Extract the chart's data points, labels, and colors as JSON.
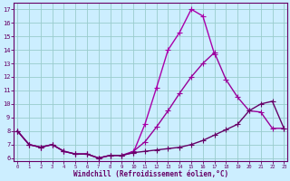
{
  "xlabel": "Windchill (Refroidissement éolien,°C)",
  "x": [
    0,
    1,
    2,
    3,
    4,
    5,
    6,
    7,
    8,
    9,
    10,
    11,
    12,
    13,
    14,
    15,
    16,
    17,
    18,
    19,
    20,
    21,
    22,
    23
  ],
  "line1": [
    8.0,
    7.0,
    6.8,
    7.0,
    6.5,
    6.3,
    6.3,
    6.0,
    6.2,
    6.2,
    6.4,
    8.5,
    11.2,
    14.0,
    15.3,
    17.0,
    16.5,
    13.7,
    null,
    null,
    null,
    null,
    null,
    null
  ],
  "line2": [
    8.0,
    7.0,
    6.8,
    7.0,
    6.5,
    6.3,
    6.3,
    6.0,
    6.2,
    6.2,
    6.5,
    7.2,
    8.3,
    9.5,
    10.8,
    12.0,
    13.0,
    13.8,
    null,
    null,
    null,
    null,
    null,
    null
  ],
  "line3": [
    8.0,
    7.0,
    6.8,
    7.0,
    6.5,
    6.3,
    6.3,
    6.0,
    6.2,
    6.2,
    6.4,
    6.5,
    6.6,
    6.7,
    6.8,
    7.0,
    7.3,
    7.7,
    8.1,
    8.5,
    9.5,
    10.0,
    10.2,
    8.2
  ],
  "line1_x": [
    0,
    1,
    2,
    3,
    4,
    5,
    6,
    7,
    8,
    9,
    10,
    11,
    12,
    13,
    14,
    15,
    16,
    17
  ],
  "line1_y": [
    8.0,
    7.0,
    6.8,
    7.0,
    6.5,
    6.3,
    6.3,
    6.0,
    6.2,
    6.2,
    6.4,
    8.5,
    11.2,
    14.0,
    15.3,
    17.0,
    16.5,
    13.7
  ],
  "line2_x": [
    0,
    1,
    2,
    3,
    4,
    5,
    6,
    7,
    8,
    9,
    10,
    11,
    12,
    13,
    14,
    15,
    16,
    17,
    18,
    19,
    20,
    21,
    22,
    23
  ],
  "line2_y": [
    8.0,
    7.0,
    6.8,
    7.0,
    6.5,
    6.3,
    6.3,
    6.0,
    6.2,
    6.2,
    6.5,
    7.2,
    8.3,
    9.5,
    10.8,
    12.0,
    13.0,
    13.8,
    11.8,
    10.5,
    9.5,
    9.4,
    8.2,
    8.2
  ],
  "line3_x": [
    0,
    1,
    2,
    3,
    4,
    5,
    6,
    7,
    8,
    9,
    10,
    11,
    12,
    13,
    14,
    15,
    16,
    17,
    18,
    19,
    20,
    21,
    22,
    23
  ],
  "line3_y": [
    8.0,
    7.0,
    6.8,
    7.0,
    6.5,
    6.3,
    6.3,
    6.0,
    6.2,
    6.2,
    6.4,
    6.5,
    6.6,
    6.7,
    6.8,
    7.0,
    7.3,
    7.7,
    8.1,
    8.5,
    9.5,
    10.0,
    10.2,
    8.2
  ],
  "line_color1": "#aa00aa",
  "line_color2": "#990099",
  "line_color3": "#660066",
  "bg_color": "#cceeff",
  "grid_color": "#99cccc",
  "axis_color": "#660066",
  "tick_color": "#660066",
  "ylim": [
    5.8,
    17.5
  ],
  "xlim": [
    -0.3,
    23.3
  ],
  "yticks": [
    6,
    7,
    8,
    9,
    10,
    11,
    12,
    13,
    14,
    15,
    16,
    17
  ],
  "xticks": [
    0,
    1,
    2,
    3,
    4,
    5,
    6,
    7,
    8,
    9,
    10,
    11,
    12,
    13,
    14,
    15,
    16,
    17,
    18,
    19,
    20,
    21,
    22,
    23
  ]
}
